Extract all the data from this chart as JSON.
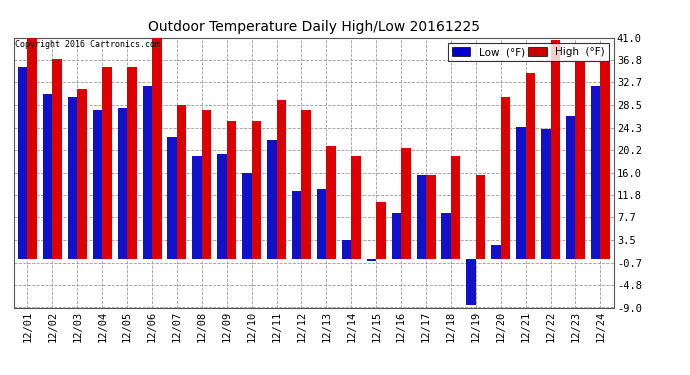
{
  "title": "Outdoor Temperature Daily High/Low 20161225",
  "copyright": "Copyright 2016 Cartronics.com",
  "background_color": "#ffffff",
  "plot_bg_color": "#ffffff",
  "grid_color": "#999999",
  "legend_low_color": "#0000cc",
  "legend_high_color": "#cc0000",
  "bar_low_color": "#1111cc",
  "bar_high_color": "#dd0000",
  "categories": [
    "12/01",
    "12/02",
    "12/03",
    "12/04",
    "12/05",
    "12/06",
    "12/07",
    "12/08",
    "12/09",
    "12/10",
    "12/11",
    "12/12",
    "12/13",
    "12/14",
    "12/15",
    "12/16",
    "12/17",
    "12/18",
    "12/19",
    "12/20",
    "12/21",
    "12/22",
    "12/23",
    "12/24"
  ],
  "low_values": [
    35.5,
    30.5,
    30.0,
    27.5,
    28.0,
    32.0,
    22.5,
    19.0,
    19.5,
    16.0,
    22.0,
    12.5,
    13.0,
    3.5,
    -0.3,
    8.5,
    15.5,
    8.5,
    -8.5,
    2.5,
    24.5,
    24.0,
    26.5,
    32.0
  ],
  "high_values": [
    41.0,
    37.0,
    31.5,
    35.5,
    35.5,
    41.5,
    28.5,
    27.5,
    25.5,
    25.5,
    29.5,
    27.5,
    21.0,
    19.0,
    10.5,
    20.5,
    15.5,
    19.0,
    15.5,
    30.0,
    34.5,
    40.5,
    36.5,
    36.5
  ],
  "ylim": [
    -9.0,
    41.0
  ],
  "ytick_values": [
    -9.0,
    -4.8,
    -0.7,
    3.5,
    7.7,
    11.8,
    16.0,
    20.2,
    24.3,
    28.5,
    32.7,
    36.8,
    41.0
  ]
}
